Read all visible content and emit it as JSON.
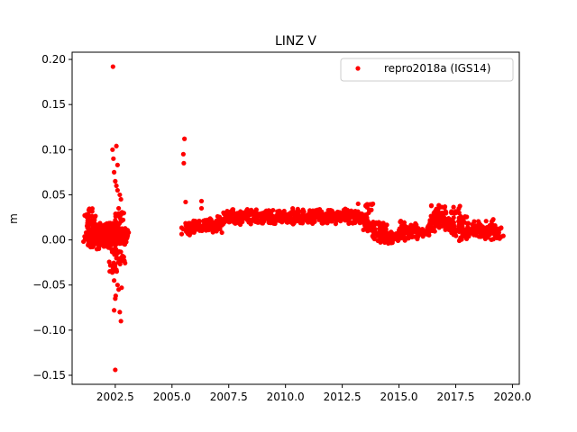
{
  "chart_data": {
    "type": "scatter",
    "title": "LINZ V",
    "xlabel": "",
    "ylabel": "m",
    "xlim": [
      2000.6,
      2020.3
    ],
    "ylim": [
      -0.16,
      0.208
    ],
    "x_ticks": [
      2002.5,
      2005.0,
      2007.5,
      2010.0,
      2012.5,
      2015.0,
      2017.5,
      2020.0
    ],
    "x_tick_labels": [
      "2002.5",
      "2005.0",
      "2007.5",
      "2010.0",
      "2012.5",
      "2015.0",
      "2017.5",
      "2020.0"
    ],
    "y_ticks": [
      -0.15,
      -0.1,
      -0.05,
      0.0,
      0.05,
      0.1,
      0.15,
      0.2
    ],
    "y_tick_labels": [
      "−0.15",
      "−0.10",
      "−0.05",
      "0.00",
      "0.05",
      "0.10",
      "0.15",
      "0.20"
    ],
    "grid": false,
    "legend": {
      "position": "top-right",
      "entries": [
        "repro2018a (IGS14)"
      ]
    },
    "series": [
      {
        "name": "repro2018a (IGS14)",
        "color": "#ff0000",
        "marker": "circle",
        "x": [
          2001.3,
          2001.35,
          2001.4,
          2001.45,
          2001.5,
          2001.55,
          2001.6,
          2001.65,
          2001.7,
          2001.75,
          2001.8,
          2001.85,
          2001.9,
          2001.95,
          2002.0,
          2002.05,
          2002.1,
          2002.15,
          2002.2,
          2002.25,
          2002.3,
          2002.35,
          2002.4,
          2002.45,
          2002.5,
          2002.55,
          2002.6,
          2002.65,
          2002.7,
          2002.75,
          2002.8,
          2002.85,
          2002.9,
          2001.32,
          2001.45,
          2002.38,
          2002.42,
          2002.45,
          2002.5,
          2002.55,
          2002.6,
          2002.7,
          2002.75,
          2002.4,
          2002.45,
          2002.5,
          2002.52,
          2002.6,
          2002.65,
          2002.7,
          2002.75,
          2002.78,
          2002.4,
          2002.45,
          2002.5,
          2002.55,
          2002.6,
          2002.65,
          2002.7,
          2002.75,
          2002.5,
          2005.55,
          2005.5,
          2005.52,
          2005.6,
          2006.3,
          2005.6,
          2005.8,
          2006.0,
          2006.2,
          2006.4,
          2006.6,
          2006.8,
          2007.0,
          2007.2,
          2007.4,
          2007.6,
          2007.8,
          2008.0,
          2008.2,
          2008.4,
          2008.6,
          2008.8,
          2009.0,
          2009.2,
          2009.4,
          2009.6,
          2009.8,
          2010.0,
          2010.2,
          2010.4,
          2010.6,
          2010.8,
          2011.0,
          2011.2,
          2011.4,
          2011.6,
          2011.8,
          2012.0,
          2012.2,
          2012.4,
          2012.6,
          2012.8,
          2013.0,
          2013.2,
          2013.4,
          2013.6,
          2013.8,
          2014.0,
          2014.2,
          2014.4,
          2014.6,
          2014.8,
          2015.0,
          2015.2,
          2015.4,
          2015.6,
          2015.8,
          2016.0,
          2016.2,
          2016.4,
          2016.6,
          2016.8,
          2017.0,
          2017.2,
          2017.4,
          2017.6,
          2017.8,
          2018.0,
          2018.2,
          2018.4,
          2018.6,
          2018.8,
          2019.0,
          2019.2,
          2019.4,
          2006.3,
          2013.2,
          2013.7,
          2016.6,
          2016.9,
          2017.5,
          2014.3,
          2015.2,
          2017.8,
          2019.0
        ],
        "y": [
          0.004,
          -0.002,
          0.008,
          0.012,
          0.0,
          0.006,
          0.01,
          -0.004,
          0.004,
          0.002,
          0.01,
          0.006,
          0.0,
          0.012,
          0.004,
          0.008,
          -0.002,
          0.006,
          0.01,
          0.004,
          0.012,
          0.0,
          0.008,
          0.004,
          0.01,
          0.006,
          0.002,
          0.012,
          0.004,
          0.008,
          0.0,
          0.006,
          0.004,
          0.028,
          0.02,
          0.1,
          0.09,
          0.075,
          0.065,
          0.06,
          0.055,
          0.05,
          0.045,
          -0.03,
          -0.045,
          -0.065,
          -0.062,
          -0.05,
          -0.055,
          -0.08,
          -0.09,
          -0.053,
          0.192,
          -0.078,
          -0.144,
          0.104,
          0.083,
          0.035,
          0.025,
          -0.02,
          -0.01,
          0.112,
          0.095,
          0.085,
          0.042,
          0.043,
          0.012,
          0.016,
          0.014,
          0.017,
          0.015,
          0.018,
          0.016,
          0.015,
          0.022,
          0.026,
          0.025,
          0.027,
          0.023,
          0.026,
          0.028,
          0.024,
          0.027,
          0.025,
          0.028,
          0.024,
          0.027,
          0.025,
          0.026,
          0.023,
          0.028,
          0.025,
          0.027,
          0.024,
          0.026,
          0.028,
          0.025,
          0.023,
          0.027,
          0.024,
          0.026,
          0.028,
          0.025,
          0.027,
          0.024,
          0.023,
          0.018,
          0.015,
          0.008,
          0.004,
          0.006,
          0.003,
          0.005,
          0.006,
          0.004,
          0.008,
          0.01,
          0.012,
          0.007,
          0.009,
          0.015,
          0.02,
          0.022,
          0.018,
          0.016,
          0.014,
          0.01,
          0.006,
          0.008,
          0.012,
          0.014,
          0.01,
          0.008,
          0.006,
          0.01,
          0.008,
          0.035,
          0.04,
          0.033,
          0.032,
          0.03,
          0.031,
          0.015,
          0.014,
          0.019,
          0.016
        ]
      }
    ]
  }
}
